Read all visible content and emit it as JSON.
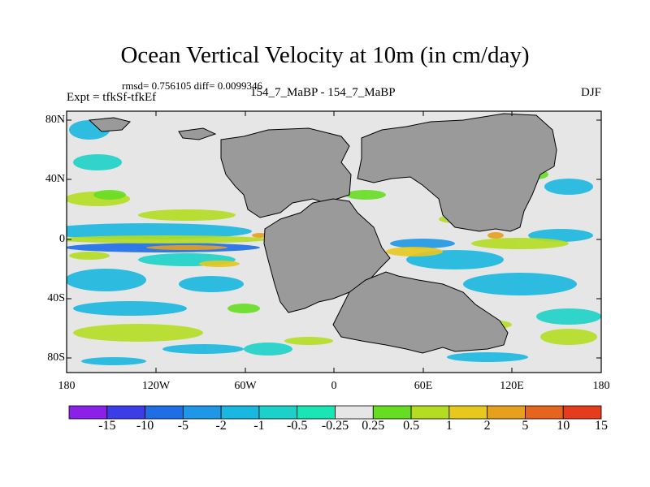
{
  "title": "Ocean Vertical Velocity at 10m (in cm/day)",
  "stats_text": "rmsd= 0.756105 diff= 0.0099346",
  "expt_text": "Expt = tfkSf-tfkEf",
  "runs_text": "154_7_MaBP - 154_7_MaBP",
  "season": "DJF",
  "lat_labels": [
    "80N",
    "40N",
    "0",
    "40S",
    "80S"
  ],
  "lon_labels": [
    "180",
    "120W",
    "60W",
    "0",
    "60E",
    "120E",
    "180"
  ],
  "colorbar": {
    "labels": [
      "-15",
      "-10",
      "-5",
      "-2",
      "-1",
      "-0.5",
      "-0.25",
      "0.25",
      "0.5",
      "1",
      "2",
      "5",
      "10",
      "15"
    ],
    "colors": [
      "#8b21e6",
      "#3b3ee6",
      "#1e6ee6",
      "#1e98e6",
      "#19b8e0",
      "#1cd2c8",
      "#19e6b4",
      "#e6e6e6",
      "#66dd22",
      "#b4dd22",
      "#e6c81e",
      "#e6a01e",
      "#e6641e",
      "#e63c1e"
    ]
  },
  "land_color": "#9a9a9a"
}
